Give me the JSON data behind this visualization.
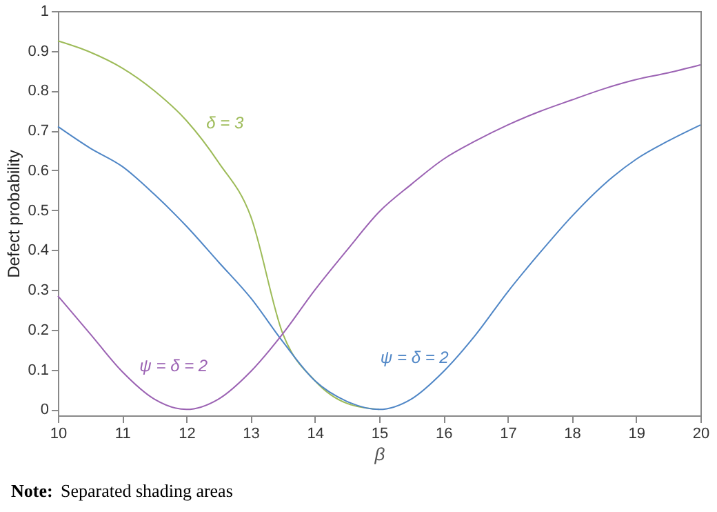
{
  "chart_data": {
    "type": "line",
    "xlabel": "β",
    "ylabel": "Defect probability",
    "xlim": [
      10,
      20
    ],
    "xticks": [
      10,
      11,
      12,
      13,
      14,
      15,
      16,
      17,
      18,
      19,
      20
    ],
    "ylim": [
      -0.015,
      1
    ],
    "yticks": [
      0,
      0.1,
      0.2,
      0.3,
      0.4,
      0.5,
      0.6,
      0.7,
      0.8,
      0.9,
      1
    ],
    "line_style": "solid",
    "marker": "none",
    "series": [
      {
        "name": "δ = 3",
        "color": "#9dbb58",
        "x": [
          10,
          10.5,
          11,
          11.5,
          12,
          12.5,
          13,
          13.5,
          14,
          14.5,
          15
        ],
        "values": [
          0.925,
          0.897,
          0.857,
          0.8,
          0.725,
          0.62,
          0.485,
          0.19,
          0.072,
          0.015,
          0
        ]
      },
      {
        "name": "ψ = δ = 2",
        "color": "#4f86c6",
        "x": [
          10,
          10.5,
          11,
          11.5,
          12,
          12.5,
          13,
          13.5,
          14,
          14.5,
          15,
          15.5,
          16,
          16.5,
          17,
          17.5,
          18,
          18.5,
          19,
          19.5,
          20
        ],
        "values": [
          0.71,
          0.656,
          0.61,
          0.54,
          0.46,
          0.37,
          0.28,
          0.17,
          0.072,
          0.02,
          0,
          0.026,
          0.095,
          0.187,
          0.295,
          0.393,
          0.485,
          0.565,
          0.628,
          0.674,
          0.714
        ]
      },
      {
        "name": "ψ = δ = 2",
        "color": "#9b62b3",
        "x": [
          10,
          10.5,
          11,
          11.5,
          12,
          12.5,
          13,
          13.5,
          14,
          14.5,
          15,
          15.5,
          16,
          16.5,
          17,
          17.5,
          18,
          18.5,
          19,
          19.5,
          20
        ],
        "values": [
          0.285,
          0.19,
          0.095,
          0.026,
          0,
          0.026,
          0.095,
          0.19,
          0.3,
          0.4,
          0.496,
          0.565,
          0.628,
          0.674,
          0.714,
          0.748,
          0.777,
          0.805,
          0.828,
          0.845,
          0.865
        ]
      }
    ],
    "annotations": [
      "Note: Separated shading areas"
    ]
  }
}
